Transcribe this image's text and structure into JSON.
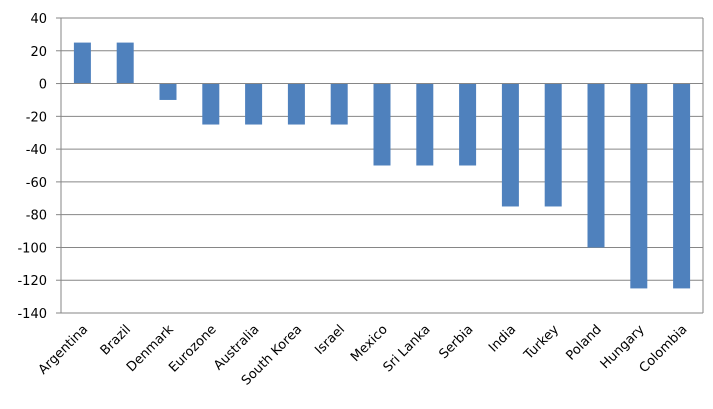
{
  "chart_data": {
    "type": "bar",
    "title": "",
    "xlabel": "",
    "ylabel": "",
    "ylim": [
      -140,
      40
    ],
    "yticks": [
      40,
      20,
      0,
      -20,
      -40,
      -60,
      -80,
      -100,
      -120,
      -140
    ],
    "grid": true,
    "legend": "none",
    "bar_color": "#4F81BD",
    "grid_color": "#868686",
    "categories": [
      "Argentina",
      "Brazil",
      "Denmark",
      "Eurozone",
      "Australia",
      "South Korea",
      "Israel",
      "Mexico",
      "Sri Lanka",
      "Serbia",
      "India",
      "Turkey",
      "Poland",
      "Hungary",
      "Colombia"
    ],
    "values": [
      25,
      25,
      -10,
      -25,
      -25,
      -25,
      -25,
      -50,
      -50,
      -50,
      -75,
      -75,
      -100,
      -125,
      -125
    ]
  }
}
